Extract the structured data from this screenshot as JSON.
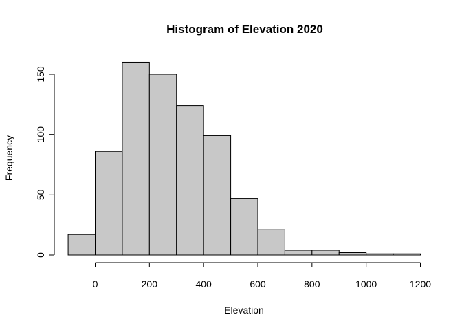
{
  "chart_data": {
    "type": "bar",
    "title": "Histogram of Elevation 2020",
    "xlabel": "Elevation",
    "ylabel": "Frequency",
    "bins": [
      {
        "start": -100,
        "end": 0,
        "count": 17
      },
      {
        "start": 0,
        "end": 100,
        "count": 86
      },
      {
        "start": 100,
        "end": 200,
        "count": 160
      },
      {
        "start": 200,
        "end": 300,
        "count": 150
      },
      {
        "start": 300,
        "end": 400,
        "count": 124
      },
      {
        "start": 400,
        "end": 500,
        "count": 99
      },
      {
        "start": 500,
        "end": 600,
        "count": 47
      },
      {
        "start": 600,
        "end": 700,
        "count": 21
      },
      {
        "start": 700,
        "end": 800,
        "count": 4
      },
      {
        "start": 800,
        "end": 900,
        "count": 4
      },
      {
        "start": 900,
        "end": 1000,
        "count": 2
      },
      {
        "start": 1000,
        "end": 1100,
        "count": 1
      },
      {
        "start": 1100,
        "end": 1200,
        "count": 1
      }
    ],
    "x_ticks": [
      0,
      200,
      400,
      600,
      800,
      1000,
      1200
    ],
    "y_ticks": [
      0,
      50,
      100,
      150
    ],
    "x_range": [
      -100,
      1200
    ],
    "y_range": [
      0,
      160
    ],
    "grid": false,
    "legend": "none",
    "bar_fill": "#c8c8c8",
    "bar_stroke": "#000000"
  }
}
